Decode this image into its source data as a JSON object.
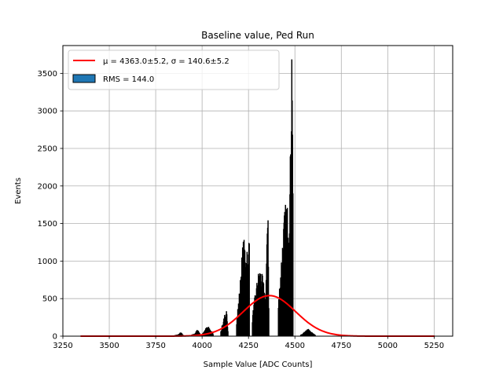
{
  "chart_data": {
    "type": "bar",
    "title": "Baseline value, Ped Run",
    "xlabel": "Sample Value [ADC Counts]",
    "ylabel": "Events",
    "xlim": [
      3250,
      5350
    ],
    "ylim": [
      0,
      3870
    ],
    "xticks": [
      3250,
      3500,
      3750,
      4000,
      4250,
      4500,
      4750,
      5000,
      5250
    ],
    "yticks": [
      0,
      500,
      1000,
      1500,
      2000,
      2500,
      3000,
      3500
    ],
    "grid": true,
    "legend_position": "top-left",
    "legend": [
      {
        "label": "μ = 4363.0±5.2, σ = 140.6±5.2",
        "kind": "line",
        "color": "#ff0000"
      },
      {
        "label": "RMS = 144.0",
        "kind": "patch",
        "color": "#1f77b4"
      }
    ],
    "histogram": {
      "bin_width": 2,
      "fill": "#1f77b4",
      "edge": "#000000",
      "groups": [
        {
          "name": "3850-3900",
          "start": 3850,
          "end": 3900,
          "base": 15,
          "peaks": [
            [
              3885,
              30,
              6
            ]
          ]
        },
        {
          "name": "3940-4000",
          "start": 3940,
          "end": 4000,
          "base": 25,
          "peaks": [
            [
              3975,
              50,
              7
            ]
          ]
        },
        {
          "name": "4000-4060",
          "start": 4000,
          "end": 4060,
          "base": 70,
          "peaks": [
            [
              4030,
              40,
              10
            ]
          ]
        },
        {
          "name": "4100-4140",
          "start": 4100,
          "end": 4140,
          "base": 150,
          "peaks": [
            [
              4120,
              100,
              4
            ],
            [
              4132,
              200,
              3
            ]
          ]
        },
        {
          "name": "4185-4255",
          "start": 4185,
          "end": 4255,
          "base": 520,
          "peaks": [
            [
              4225,
              650,
              12
            ],
            [
              4244,
              500,
              4
            ],
            [
              4253,
              1050,
              2
            ]
          ]
        },
        {
          "name": "4270-4360",
          "start": 4270,
          "end": 4360,
          "base": 570,
          "peaks": [
            [
              4310,
              200,
              14
            ],
            [
              4350,
              950,
              3
            ],
            [
              4355,
              1000,
              2
            ]
          ]
        },
        {
          "name": "4410-4490",
          "start": 4410,
          "end": 4490,
          "base": 880,
          "peaks": [
            [
              4455,
              700,
              18
            ],
            [
              4478,
              1600,
              4
            ],
            [
              4484,
              2500,
              2
            ],
            [
              4488,
              2000,
              1
            ]
          ]
        },
        {
          "name": "4530-4610",
          "start": 4530,
          "end": 4610,
          "base": 30,
          "peaks": [
            [
              4570,
              55,
              14
            ]
          ]
        }
      ]
    },
    "gaussian_fit": {
      "mu": 4363.0,
      "sigma": 140.6,
      "amplitude": 540,
      "x_range": [
        3345,
        5255
      ],
      "color": "#ff0000"
    }
  }
}
